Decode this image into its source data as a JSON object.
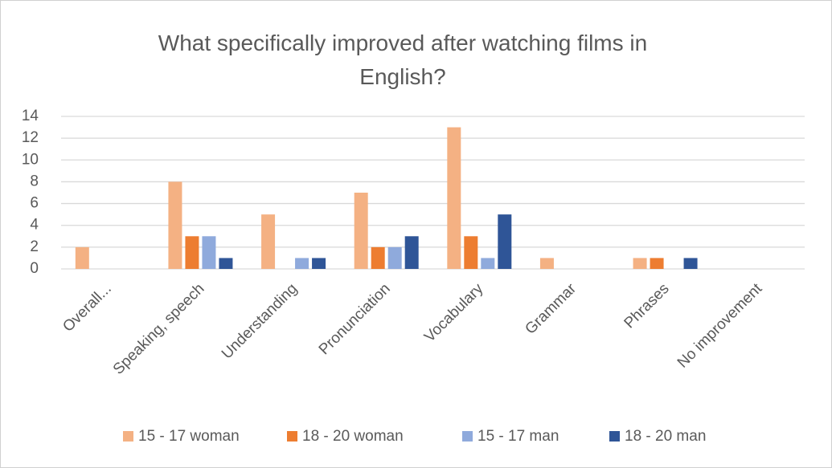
{
  "chart_data": {
    "type": "bar",
    "title": "What specifically improved after watching films in English?",
    "categories": [
      "Overall...",
      "Speaking, speech",
      "Understanding",
      "Pronunciation",
      "Vocabulary",
      "Grammar",
      "Phrases",
      "No improvement"
    ],
    "series": [
      {
        "name": "15 - 17 woman",
        "color": "#f4b183",
        "values": [
          2,
          8,
          5,
          7,
          13,
          1,
          1,
          0
        ]
      },
      {
        "name": "18 - 20 woman",
        "color": "#ed7d31",
        "values": [
          0,
          3,
          0,
          2,
          3,
          0,
          1,
          0
        ]
      },
      {
        "name": "15 - 17 man",
        "color": "#8faadc",
        "values": [
          0,
          3,
          1,
          2,
          1,
          0,
          0,
          0
        ]
      },
      {
        "name": "18 - 20 man",
        "color": "#2f5597",
        "values": [
          0,
          1,
          1,
          3,
          5,
          0,
          1,
          0
        ]
      }
    ],
    "ylim": [
      0,
      14
    ],
    "yticks": [
      0,
      2,
      4,
      6,
      8,
      10,
      12,
      14
    ],
    "grid": true,
    "legend": "bottom"
  }
}
